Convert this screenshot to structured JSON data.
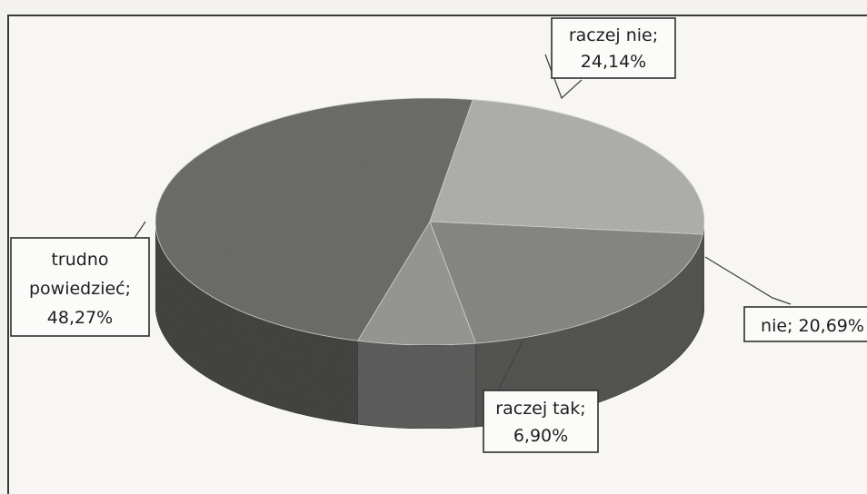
{
  "chart_data": {
    "type": "pie",
    "style": "3d",
    "slices": [
      {
        "name": "raczej nie",
        "value": 24.14,
        "label": "raczej nie;",
        "value_label": "24,14%",
        "color": "#b3b3b1"
      },
      {
        "name": "nie",
        "value": 20.69,
        "label": "nie; 20,69%",
        "value_label": "",
        "color": "#8a8a87"
      },
      {
        "name": "raczej tak",
        "value": 6.9,
        "label": "raczej tak;",
        "value_label": "6,90%",
        "color": "#9a9a97"
      },
      {
        "name": "trudno powiedzieć",
        "value": 48.27,
        "label": "trudno",
        "label2": "powiedzieć;",
        "value_label": "48,27%",
        "color": "#6f6f6c"
      }
    ],
    "legend": "none"
  }
}
